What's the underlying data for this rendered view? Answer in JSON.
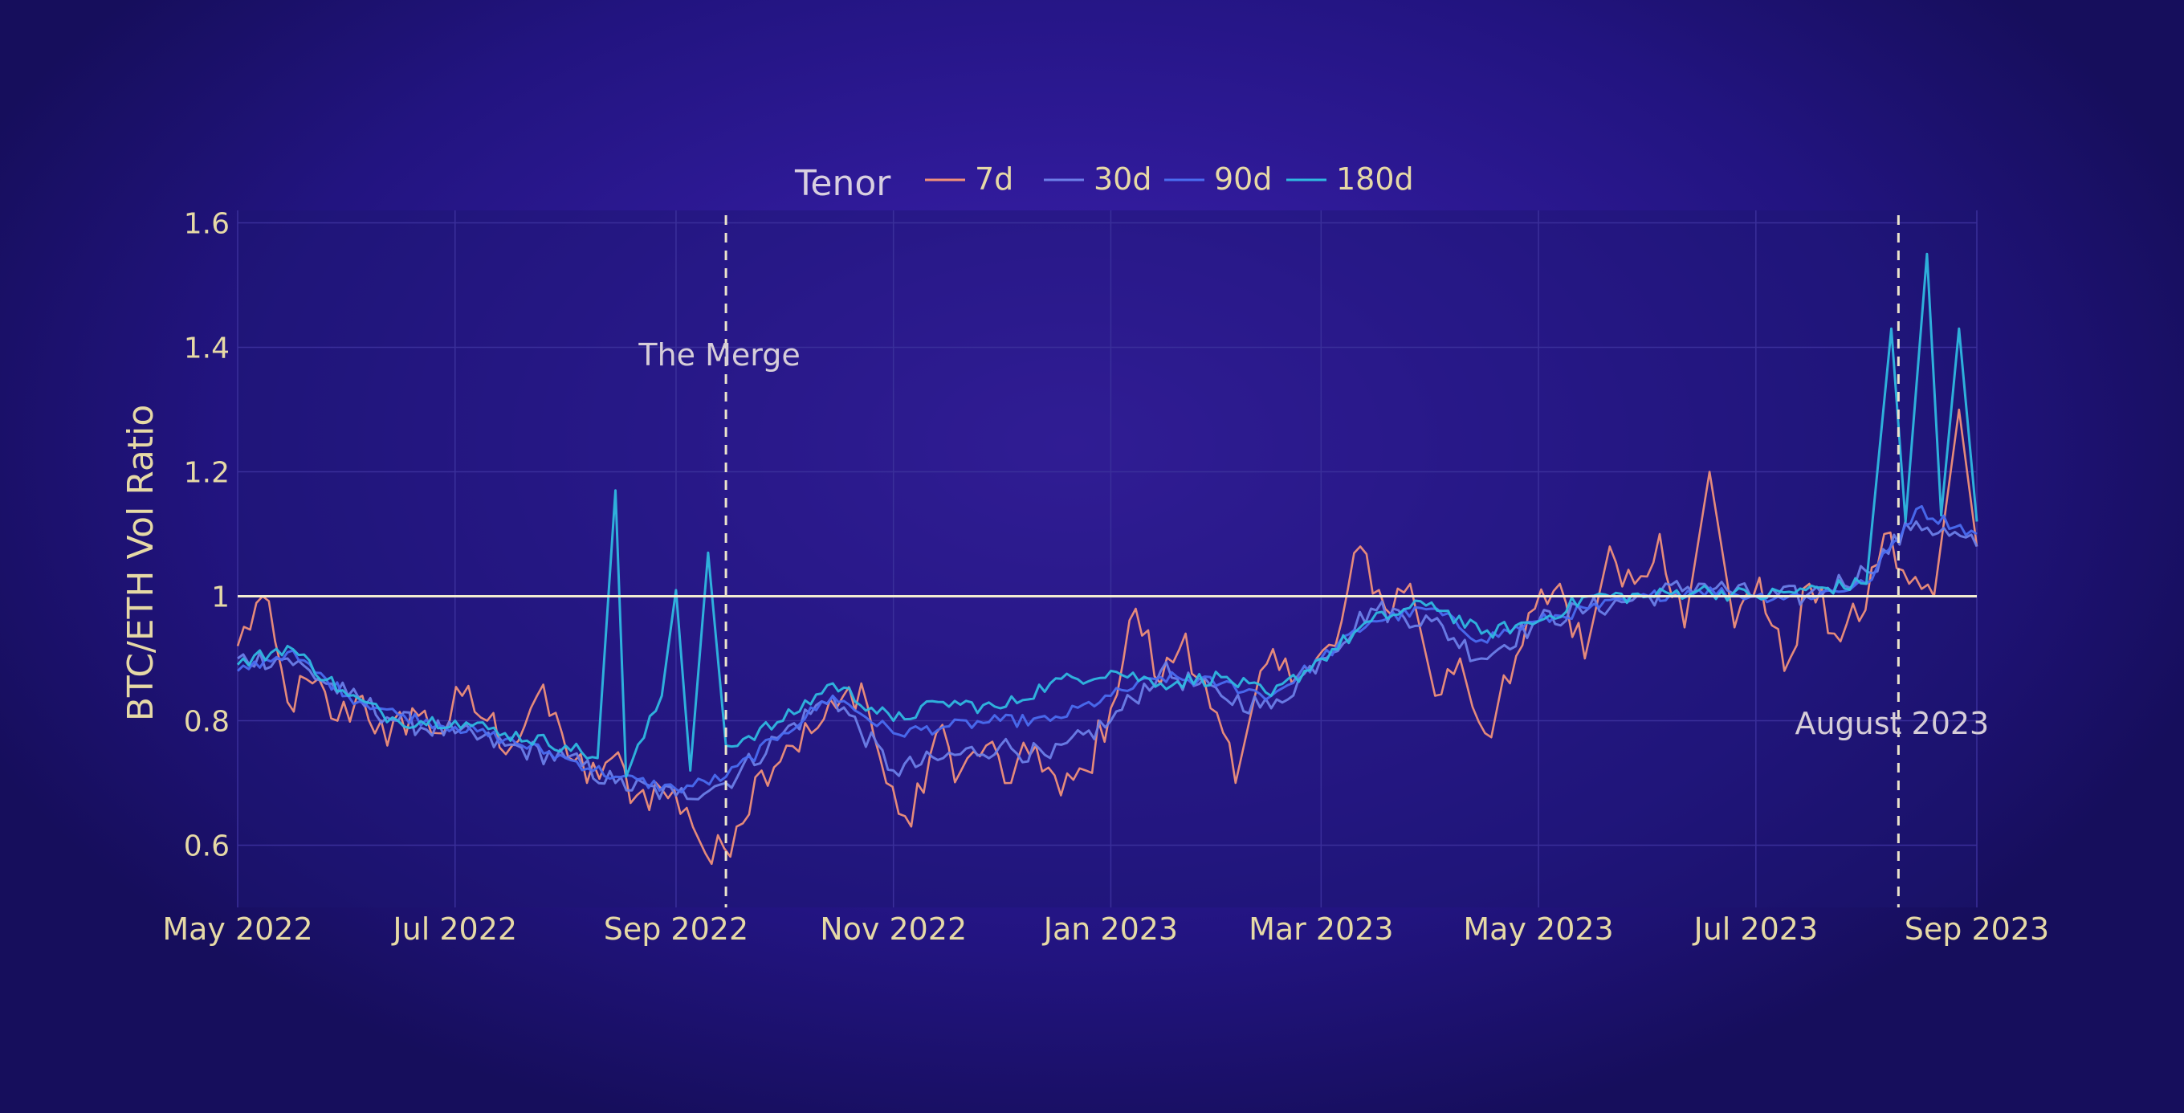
{
  "chart_data": {
    "type": "line",
    "title": "",
    "xlabel": "",
    "ylabel": "BTC/ETH Vol Ratio",
    "xlim": [
      "2022-05-01",
      "2023-09-01"
    ],
    "ylim": [
      0.5,
      1.62
    ],
    "yticks": [
      0.6,
      0.8,
      1,
      1.2,
      1.4,
      1.6
    ],
    "ytick_labels": [
      "0.6",
      "0.8",
      "1",
      "1.2",
      "1.4",
      "1.6"
    ],
    "xticks": [
      "2022-05-01",
      "2022-07-01",
      "2022-09-01",
      "2022-11-01",
      "2023-01-01",
      "2023-03-01",
      "2023-05-01",
      "2023-07-01",
      "2023-09-01"
    ],
    "xtick_labels": [
      "May 2022",
      "Jul 2022",
      "Sep 2022",
      "Nov 2022",
      "Jan 2023",
      "Mar 2023",
      "May 2023",
      "Jul 2023",
      "Sep 2023"
    ],
    "grid": true,
    "legend": {
      "title": "Tenor",
      "placement": "top-center",
      "entries": [
        "7d",
        "30d",
        "90d",
        "180d"
      ]
    },
    "series": [
      {
        "name": "7d",
        "color": "#f0907a",
        "x": [
          "2022-05-01",
          "2022-05-08",
          "2022-05-15",
          "2022-05-22",
          "2022-05-29",
          "2022-06-05",
          "2022-06-12",
          "2022-06-19",
          "2022-06-26",
          "2022-07-03",
          "2022-07-10",
          "2022-07-17",
          "2022-07-24",
          "2022-07-31",
          "2022-08-07",
          "2022-08-14",
          "2022-08-21",
          "2022-08-28",
          "2022-09-04",
          "2022-09-11",
          "2022-09-18",
          "2022-09-25",
          "2022-10-02",
          "2022-10-09",
          "2022-10-16",
          "2022-10-23",
          "2022-10-30",
          "2022-11-06",
          "2022-11-13",
          "2022-11-20",
          "2022-11-27",
          "2022-12-04",
          "2022-12-11",
          "2022-12-18",
          "2022-12-25",
          "2023-01-01",
          "2023-01-08",
          "2023-01-15",
          "2023-01-22",
          "2023-01-29",
          "2023-02-05",
          "2023-02-12",
          "2023-02-19",
          "2023-02-26",
          "2023-03-05",
          "2023-03-12",
          "2023-03-19",
          "2023-03-26",
          "2023-04-02",
          "2023-04-09",
          "2023-04-16",
          "2023-04-23",
          "2023-04-30",
          "2023-05-07",
          "2023-05-14",
          "2023-05-21",
          "2023-05-28",
          "2023-06-04",
          "2023-06-11",
          "2023-06-18",
          "2023-06-25",
          "2023-07-02",
          "2023-07-09",
          "2023-07-16",
          "2023-07-23",
          "2023-07-30",
          "2023-08-06",
          "2023-08-13",
          "2023-08-20",
          "2023-08-27",
          "2023-09-01"
        ],
        "y": [
          0.92,
          1.0,
          0.83,
          0.86,
          0.8,
          0.84,
          0.76,
          0.82,
          0.78,
          0.84,
          0.8,
          0.76,
          0.84,
          0.78,
          0.7,
          0.74,
          0.68,
          0.69,
          0.66,
          0.57,
          0.63,
          0.72,
          0.76,
          0.78,
          0.82,
          0.86,
          0.7,
          0.63,
          0.78,
          0.72,
          0.76,
          0.7,
          0.76,
          0.68,
          0.72,
          0.82,
          0.98,
          0.86,
          0.94,
          0.82,
          0.7,
          0.88,
          0.9,
          0.88,
          0.92,
          1.08,
          0.98,
          1.02,
          0.84,
          0.9,
          0.78,
          0.86,
          0.98,
          1.02,
          0.9,
          1.08,
          1.02,
          1.1,
          0.95,
          1.2,
          0.95,
          1.03,
          0.88,
          1.02,
          0.94,
          0.96,
          1.1,
          1.02,
          1.0,
          1.3,
          1.08
        ]
      },
      {
        "name": "30d",
        "color": "#6c7ee8",
        "x": [
          "2022-05-01",
          "2022-05-15",
          "2022-06-01",
          "2022-06-15",
          "2022-07-01",
          "2022-07-15",
          "2022-08-01",
          "2022-08-15",
          "2022-09-01",
          "2022-09-15",
          "2022-10-01",
          "2022-10-15",
          "2022-11-01",
          "2022-11-15",
          "2022-12-01",
          "2022-12-15",
          "2023-01-01",
          "2023-01-15",
          "2023-02-01",
          "2023-02-15",
          "2023-03-01",
          "2023-03-15",
          "2023-04-01",
          "2023-04-15",
          "2023-05-01",
          "2023-05-15",
          "2023-06-01",
          "2023-06-15",
          "2023-07-01",
          "2023-07-15",
          "2023-08-01",
          "2023-08-15",
          "2023-09-01"
        ],
        "y": [
          0.9,
          0.9,
          0.84,
          0.8,
          0.78,
          0.76,
          0.74,
          0.7,
          0.68,
          0.7,
          0.78,
          0.84,
          0.72,
          0.74,
          0.76,
          0.74,
          0.8,
          0.88,
          0.84,
          0.82,
          0.9,
          0.98,
          0.96,
          0.9,
          0.96,
          0.98,
          1.0,
          1.02,
          1.0,
          1.0,
          1.04,
          1.12,
          1.08
        ]
      },
      {
        "name": "90d",
        "color": "#4a6cf0",
        "x": [
          "2022-05-01",
          "2022-05-15",
          "2022-06-01",
          "2022-06-15",
          "2022-07-01",
          "2022-07-15",
          "2022-08-01",
          "2022-08-15",
          "2022-09-01",
          "2022-09-15",
          "2022-10-01",
          "2022-10-15",
          "2022-11-01",
          "2022-11-15",
          "2022-12-01",
          "2022-12-15",
          "2023-01-01",
          "2023-01-15",
          "2023-02-01",
          "2023-02-15",
          "2023-03-01",
          "2023-03-15",
          "2023-04-01",
          "2023-04-15",
          "2023-05-01",
          "2023-05-15",
          "2023-06-01",
          "2023-06-15",
          "2023-07-01",
          "2023-07-15",
          "2023-08-01",
          "2023-08-15",
          "2023-09-01"
        ],
        "y": [
          0.88,
          0.91,
          0.84,
          0.81,
          0.79,
          0.77,
          0.74,
          0.71,
          0.69,
          0.71,
          0.78,
          0.84,
          0.78,
          0.79,
          0.8,
          0.8,
          0.84,
          0.87,
          0.86,
          0.84,
          0.9,
          0.96,
          0.98,
          0.93,
          0.96,
          0.98,
          1.0,
          1.01,
          1.0,
          1.0,
          1.02,
          1.14,
          1.1
        ]
      },
      {
        "name": "180d",
        "color": "#2fb8e0",
        "x": [
          "2022-05-01",
          "2022-05-15",
          "2022-06-01",
          "2022-06-15",
          "2022-07-01",
          "2022-07-15",
          "2022-08-01",
          "2022-08-10",
          "2022-08-15",
          "2022-08-18",
          "2022-08-28",
          "2022-09-01",
          "2022-09-05",
          "2022-09-10",
          "2022-09-15",
          "2022-10-01",
          "2022-10-15",
          "2022-11-01",
          "2022-11-15",
          "2022-12-01",
          "2022-12-15",
          "2023-01-01",
          "2023-01-15",
          "2023-02-01",
          "2023-02-15",
          "2023-03-01",
          "2023-03-15",
          "2023-04-01",
          "2023-04-15",
          "2023-05-01",
          "2023-05-15",
          "2023-06-01",
          "2023-06-15",
          "2023-07-01",
          "2023-07-15",
          "2023-08-01",
          "2023-08-08",
          "2023-08-12",
          "2023-08-18",
          "2023-08-22",
          "2023-08-27",
          "2023-09-01"
        ],
        "y": [
          0.89,
          0.92,
          0.84,
          0.8,
          0.8,
          0.78,
          0.76,
          0.74,
          1.17,
          0.71,
          0.84,
          1.01,
          0.72,
          1.07,
          0.76,
          0.8,
          0.86,
          0.8,
          0.83,
          0.82,
          0.86,
          0.88,
          0.86,
          0.87,
          0.84,
          0.9,
          0.96,
          0.99,
          0.94,
          0.96,
          1.0,
          1.0,
          1.01,
          1.0,
          1.01,
          1.02,
          1.43,
          1.12,
          1.55,
          1.13,
          1.43,
          1.12
        ]
      }
    ],
    "reference_lines": [
      {
        "type": "horizontal",
        "y": 1,
        "color": "#f2ecd2"
      }
    ],
    "annotations": [
      {
        "type": "vertical",
        "x": "2022-09-15",
        "label": "The Merge",
        "style": "dashed"
      },
      {
        "type": "vertical",
        "x": "2023-08-10",
        "label": "August 2023",
        "style": "dashed"
      }
    ]
  }
}
